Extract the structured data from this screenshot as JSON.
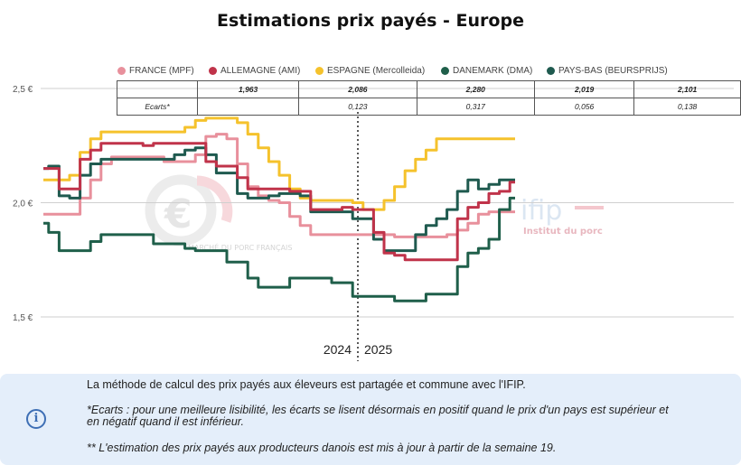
{
  "chart_data": {
    "type": "line",
    "title": "Estimations prix payés - Europe",
    "ylim": [
      1.5,
      2.5
    ],
    "y_ticks": [
      "2,5 €",
      "2,0 €",
      "1,5 €"
    ],
    "y_tick_values": [
      2.5,
      2.0,
      1.5
    ],
    "year_labels": [
      "2024",
      "2025"
    ],
    "x_range": [
      0,
      53
    ],
    "year_divider_x": 30,
    "grid": "horizontal",
    "legend_position": "top",
    "series": [
      {
        "name": "FRANCE (MPF)",
        "color": "#e8909c",
        "latest": "1,963",
        "ecart": "",
        "x": [
          0,
          1,
          2,
          3,
          4,
          5,
          6,
          7,
          8,
          9,
          10,
          11,
          12,
          13,
          14,
          15,
          16,
          17,
          18,
          19,
          20,
          21,
          22,
          23,
          24,
          25,
          26,
          27,
          28,
          29,
          30,
          31,
          32,
          33,
          34,
          35,
          36,
          37,
          38,
          39,
          40,
          41,
          42,
          43,
          44,
          45
        ],
        "values": [
          1.95,
          1.95,
          1.95,
          1.95,
          2.02,
          2.1,
          2.17,
          2.2,
          2.2,
          2.2,
          2.2,
          2.2,
          2.18,
          2.18,
          2.18,
          2.21,
          2.29,
          2.3,
          2.28,
          2.17,
          2.07,
          2.03,
          2.01,
          2.0,
          1.94,
          1.9,
          1.86,
          1.86,
          1.86,
          1.86,
          1.86,
          1.86,
          1.86,
          1.86,
          1.85,
          1.85,
          1.85,
          1.85,
          1.85,
          1.86,
          1.88,
          1.91,
          1.95,
          1.96,
          1.96,
          1.96
        ]
      },
      {
        "name": "ALLEMAGNE (AMI)",
        "color": "#c0334a",
        "latest": "2,086",
        "ecart": "0,123",
        "x": [
          0,
          1,
          2,
          3,
          4,
          5,
          6,
          7,
          8,
          9,
          10,
          11,
          12,
          13,
          14,
          15,
          16,
          17,
          18,
          19,
          20,
          21,
          22,
          23,
          24,
          25,
          26,
          27,
          28,
          29,
          30,
          31,
          32,
          33,
          34,
          35,
          36,
          37,
          38,
          39,
          40,
          41,
          42,
          43,
          44,
          45
        ],
        "values": [
          2.15,
          2.15,
          2.06,
          2.06,
          2.19,
          2.23,
          2.26,
          2.26,
          2.26,
          2.26,
          2.25,
          2.26,
          2.26,
          2.26,
          2.26,
          2.26,
          2.18,
          2.16,
          2.16,
          2.11,
          2.06,
          2.06,
          2.06,
          2.06,
          2.05,
          2.05,
          1.97,
          1.97,
          1.97,
          1.98,
          1.97,
          1.97,
          1.87,
          1.78,
          1.77,
          1.75,
          1.75,
          1.75,
          1.75,
          1.75,
          1.93,
          1.98,
          2.0,
          2.04,
          2.05,
          2.09
        ]
      },
      {
        "name": "ESPAGNE (Mercolleida)",
        "color": "#f5c22c",
        "latest": "2,280",
        "ecart": "0,317",
        "x": [
          0,
          1,
          2,
          3,
          4,
          5,
          6,
          7,
          8,
          9,
          10,
          11,
          12,
          13,
          14,
          15,
          16,
          17,
          18,
          19,
          20,
          21,
          22,
          23,
          24,
          25,
          26,
          27,
          28,
          29,
          30,
          31,
          32,
          33,
          34,
          35,
          36,
          37,
          38,
          39,
          40,
          41,
          42,
          43,
          44,
          45
        ],
        "values": [
          2.1,
          2.1,
          2.1,
          2.12,
          2.22,
          2.28,
          2.31,
          2.31,
          2.31,
          2.31,
          2.31,
          2.31,
          2.31,
          2.31,
          2.33,
          2.36,
          2.37,
          2.37,
          2.37,
          2.35,
          2.3,
          2.24,
          2.18,
          2.12,
          2.06,
          2.02,
          2.01,
          2.01,
          2.01,
          2.01,
          2.0,
          1.97,
          1.97,
          2.01,
          2.07,
          2.14,
          2.19,
          2.23,
          2.28,
          2.28,
          2.28,
          2.28,
          2.28,
          2.28,
          2.28,
          2.28
        ]
      },
      {
        "name": "DANEMARK (DMA)",
        "color": "#1f5f4a",
        "latest": "2,019",
        "ecart": "0,056",
        "x": [
          0,
          1,
          2,
          3,
          4,
          5,
          6,
          7,
          8,
          9,
          10,
          11,
          12,
          13,
          14,
          15,
          16,
          17,
          18,
          19,
          20,
          21,
          22,
          23,
          24,
          25,
          26,
          27,
          28,
          29,
          30,
          31,
          32,
          33,
          34,
          35,
          36,
          37,
          38,
          39,
          40,
          41,
          42,
          43,
          44,
          45
        ],
        "values": [
          1.91,
          1.87,
          1.79,
          1.79,
          1.79,
          1.83,
          1.86,
          1.86,
          1.86,
          1.86,
          1.86,
          1.82,
          1.82,
          1.82,
          1.8,
          1.79,
          1.79,
          1.79,
          1.74,
          1.74,
          1.67,
          1.63,
          1.63,
          1.63,
          1.67,
          1.67,
          1.67,
          1.67,
          1.65,
          1.65,
          1.59,
          1.59,
          1.59,
          1.59,
          1.57,
          1.57,
          1.57,
          1.6,
          1.6,
          1.6,
          1.72,
          1.78,
          1.8,
          1.84,
          1.97,
          2.02
        ]
      },
      {
        "name": "PAYS-BAS (BEURSPRIJS)",
        "color": "#1f5a4f",
        "latest": "2,101",
        "ecart": "0,138",
        "x": [
          0,
          1,
          2,
          3,
          4,
          5,
          6,
          7,
          8,
          9,
          10,
          11,
          12,
          13,
          14,
          15,
          16,
          17,
          18,
          19,
          20,
          21,
          22,
          23,
          24,
          25,
          26,
          27,
          28,
          29,
          30,
          31,
          32,
          33,
          34,
          35,
          36,
          37,
          38,
          39,
          40,
          41,
          42,
          43,
          44,
          45
        ],
        "values": [
          2.15,
          2.16,
          2.03,
          2.02,
          2.12,
          2.17,
          2.19,
          2.19,
          2.19,
          2.19,
          2.19,
          2.19,
          2.19,
          2.21,
          2.23,
          2.24,
          2.21,
          2.13,
          2.13,
          2.04,
          2.02,
          2.02,
          2.03,
          2.04,
          2.04,
          2.03,
          1.96,
          1.96,
          1.96,
          1.96,
          1.93,
          1.93,
          1.84,
          1.79,
          1.79,
          1.79,
          1.86,
          1.9,
          1.93,
          1.97,
          2.05,
          2.1,
          2.06,
          2.08,
          2.1,
          2.1
        ]
      }
    ]
  },
  "table": {
    "row2_label": "Ecarts*"
  },
  "watermark": {
    "left_text": "MARCHÉ DU PORC FRANÇAIS",
    "right_brand": "ifip",
    "right_sub": "Institut du porc"
  },
  "notes": {
    "line1": "La méthode de calcul des prix payés aux éleveurs est partagée et commune avec l'IFIP.",
    "line2a": "*Ecarts : pour une meilleure lisibilité, les écarts se lisent désormais en positif quand le prix d'un pays est supérieur et",
    "line2b": "en négatif quand il est inférieur.",
    "line3": "** L'estimation des prix payés aux producteurs danois est mis à jour à partir de la semaine 19."
  },
  "icons": {
    "info": "info-icon"
  }
}
